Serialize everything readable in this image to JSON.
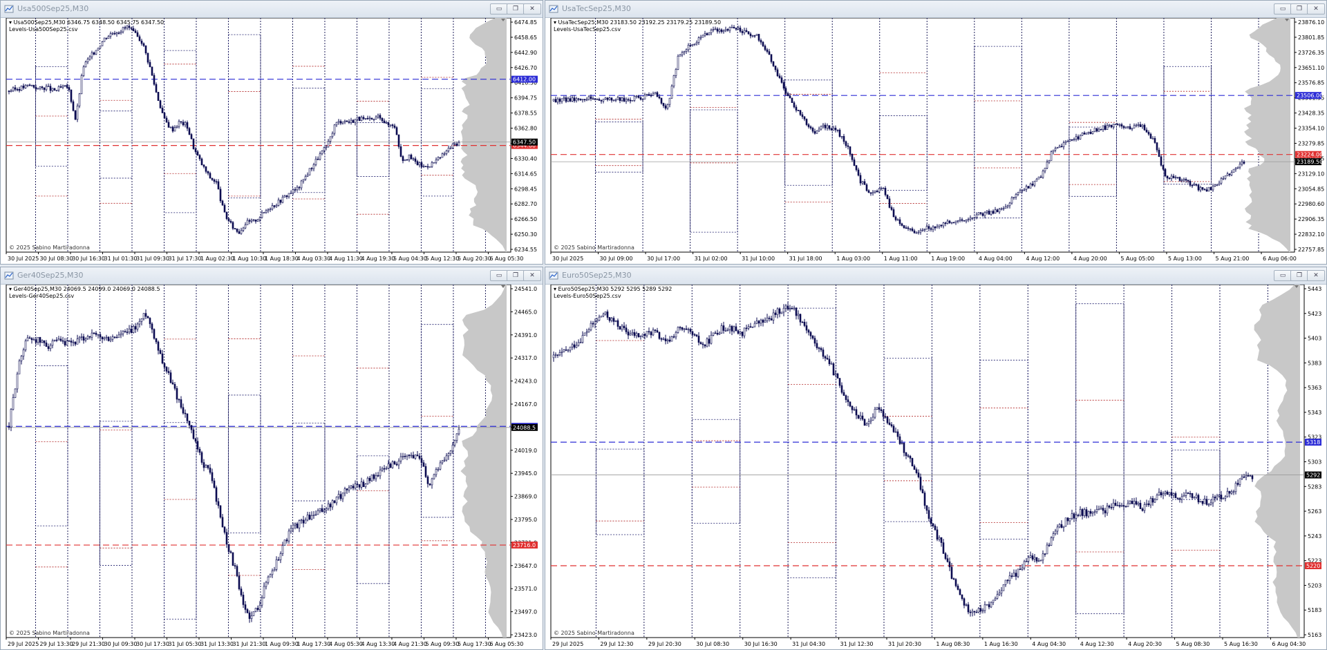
{
  "windows": [
    {
      "title": "Usa500Sep25,M30",
      "info_line": "Usa500Sep25,M30  6346.75 6348.50 6345.75 6347.50",
      "levels_file": "Levels-Usa500Sep25.csv",
      "copyright": "© 2025 Sabino Martiradonna",
      "price_labels": [
        "6474.85",
        "6458.65",
        "6442.90",
        "6426.70",
        "6410.50",
        "6394.75",
        "6378.55",
        "6362.80",
        "6346.60",
        "6330.40",
        "6314.65",
        "6298.45",
        "6282.70",
        "6266.50",
        "6250.30",
        "6234.55"
      ],
      "time_labels": [
        "30 Jul 2025",
        "30 Jul 08:30",
        "30 Jul 16:30",
        "31 Jul 01:30",
        "31 Jul 09:30",
        "31 Jul 17:30",
        "1 Aug 02:30",
        "1 Aug 10:30",
        "1 Aug 18:30",
        "4 Aug 03:30",
        "4 Aug 11:30",
        "4 Aug 19:30",
        "5 Aug 04:30",
        "5 Aug 12:30",
        "5 Aug 20:30",
        "6 Aug 05:30"
      ],
      "markers": {
        "blue": "6412.00",
        "red": "6344.00",
        "last": "6347.50"
      }
    },
    {
      "title": "UsaTecSep25,M30",
      "info_line": "UsaTecSep25,M30  23183.50 23192.25 23179.25 23189.50",
      "levels_file": "Levels-UsaTecSep25.csv",
      "copyright": "© 2025 Sabino Martiradonna",
      "price_labels": [
        "23876.10",
        "23801.85",
        "23726.35",
        "23651.10",
        "23576.85",
        "23501.35",
        "23428.35",
        "23354.10",
        "23279.85",
        "23204.35",
        "23129.10",
        "23054.85",
        "22980.60",
        "22906.35",
        "22832.10",
        "22757.85"
      ],
      "time_labels": [
        "30 Jul 2025",
        "30 Jul 09:00",
        "30 Jul 17:00",
        "31 Jul 02:00",
        "31 Jul 10:00",
        "31 Jul 18:00",
        "1 Aug 03:00",
        "1 Aug 11:00",
        "1 Aug 19:00",
        "4 Aug 04:00",
        "4 Aug 12:00",
        "4 Aug 20:00",
        "5 Aug 05:00",
        "5 Aug 13:00",
        "5 Aug 21:00",
        "6 Aug 06:00"
      ],
      "markers": {
        "blue": "23506.00",
        "red": "23224.00",
        "last": "23189.50"
      }
    },
    {
      "title": "Ger40Sep25,M30",
      "info_line": "Ger40Sep25,M30  24069.5 24099.0 24069.0 24088.5",
      "levels_file": "Levels-Ger40Sep25.csv",
      "copyright": "© 2025 Sabino Martiradonna",
      "price_labels": [
        "24541.0",
        "24465.0",
        "24391.0",
        "24317.0",
        "24243.0",
        "24167.0",
        "24093.0",
        "24019.0",
        "23945.0",
        "23869.0",
        "23795.0",
        "23721.0",
        "23647.0",
        "23571.0",
        "23497.0",
        "23423.0"
      ],
      "time_labels": [
        "29 Jul 2025",
        "29 Jul 13:30",
        "29 Jul 21:30",
        "30 Jul 09:30",
        "30 Jul 17:30",
        "31 Jul 05:30",
        "31 Jul 13:30",
        "31 Jul 21:30",
        "1 Aug 09:30",
        "1 Aug 17:30",
        "4 Aug 05:30",
        "4 Aug 13:30",
        "4 Aug 21:30",
        "5 Aug 09:30",
        "5 Aug 17:30",
        "6 Aug 05:30"
      ],
      "markers": {
        "blue": "24092.0",
        "red": "23716.0",
        "last": "24088.5"
      }
    },
    {
      "title": "Euro50Sep25,M30",
      "info_line": "Euro50Sep25,M30  5292 5295 5289 5292",
      "levels_file": "Levels-Euro50Sep25.csv",
      "copyright": "© 2025 Sabino Martiradonna",
      "price_labels": [
        "5443",
        "5423",
        "5403",
        "5383",
        "5363",
        "5343",
        "5323",
        "5303",
        "5283",
        "5263",
        "5243",
        "5223",
        "5203",
        "5183",
        "5163"
      ],
      "time_labels": [
        "29 Jul 2025",
        "29 Jul 12:30",
        "29 Jul 20:30",
        "30 Jul 08:30",
        "30 Jul 16:30",
        "31 Jul 04:30",
        "31 Jul 12:30",
        "31 Jul 20:30",
        "1 Aug 08:30",
        "1 Aug 16:30",
        "4 Aug 04:30",
        "4 Aug 12:30",
        "4 Aug 20:30",
        "5 Aug 08:30",
        "5 Aug 16:30",
        "6 Aug 04:30"
      ],
      "markers": {
        "blue": "5318",
        "red": "5220",
        "last": "5292"
      }
    }
  ],
  "chart_data": [
    {
      "type": "candlestick",
      "symbol": "Usa500Sep25,M30",
      "ylim": [
        6234.55,
        6474.85
      ],
      "price_path": [
        6400,
        6402,
        6404,
        6406,
        6402,
        6404,
        6400,
        6403,
        6404,
        6370,
        6425,
        6435,
        6445,
        6455,
        6460,
        6462,
        6466,
        6458,
        6450,
        6425,
        6395,
        6370,
        6360,
        6368,
        6365,
        6340,
        6325,
        6312,
        6306,
        6275,
        6262,
        6255,
        6265,
        6266,
        6272,
        6280,
        6284,
        6290,
        6296,
        6300,
        6312,
        6324,
        6335,
        6344,
        6366,
        6370,
        6368,
        6372,
        6370,
        6370,
        6375,
        6365,
        6366,
        6330,
        6332,
        6326,
        6322,
        6325,
        6330,
        6338,
        6345,
        6347.5
      ],
      "levels": {
        "blue": 6412.0,
        "red": 6344.0,
        "last": 6347.5
      },
      "level_colors": {
        "blue": "#2b2bd6",
        "red": "#e03030"
      },
      "candle_color": "#0a0a50"
    },
    {
      "type": "candlestick",
      "symbol": "UsaTecSep25,M30",
      "ylim": [
        22757.85,
        23876.1
      ],
      "price_path": [
        23480,
        23485,
        23492,
        23494,
        23488,
        23490,
        23486,
        23492,
        23500,
        23510,
        23440,
        23690,
        23745,
        23785,
        23810,
        23822,
        23828,
        23805,
        23790,
        23700,
        23580,
        23470,
        23400,
        23330,
        23360,
        23340,
        23252,
        23100,
        23040,
        23070,
        22930,
        22880,
        22855,
        22872,
        22882,
        22900,
        22912,
        22930,
        22944,
        22956,
        22980,
        23040,
        23074,
        23114,
        23236,
        23270,
        23300,
        23326,
        23344,
        23358,
        23364,
        23352,
        23364,
        23284,
        23122,
        23110,
        23090,
        23060,
        23058,
        23106,
        23150,
        23189.5
      ],
      "levels": {
        "blue": 23506.0,
        "red": 23224.0,
        "last": 23189.5
      },
      "level_colors": {
        "blue": "#2b2bd6",
        "red": "#e03030"
      },
      "candle_color": "#0a0a50"
    },
    {
      "type": "candlestick",
      "symbol": "Ger40Sep25,M30",
      "ylim": [
        23423.0,
        24541.0
      ],
      "price_path": [
        24092,
        24260,
        24365,
        24372,
        24358,
        24348,
        24360,
        24350,
        24357,
        24366,
        24382,
        24375,
        24368,
        24372,
        24385,
        24390,
        24416,
        24452,
        24380,
        24300,
        24240,
        24176,
        24118,
        24042,
        23976,
        23944,
        23826,
        23724,
        23640,
        23520,
        23486,
        23530,
        23610,
        23652,
        23718,
        23768,
        23786,
        23802,
        23812,
        23830,
        23846,
        23870,
        23900,
        23906,
        23912,
        23932,
        23946,
        23968,
        23978,
        23992,
        24000,
        23998,
        23906,
        23960,
        23984,
        24040,
        24088.5
      ],
      "levels": {
        "blue": 24092.0,
        "red": 23716.0,
        "last": 24088.5
      },
      "level_colors": {
        "blue": "#2b2bd6",
        "red": "#e03030"
      },
      "candle_color": "#0a0a50"
    },
    {
      "type": "candlestick",
      "symbol": "Euro50Sep25,M30",
      "ylim": [
        5163,
        5443
      ],
      "price_path": [
        5385,
        5390,
        5398,
        5410,
        5420,
        5412,
        5404,
        5402,
        5406,
        5396,
        5408,
        5404,
        5394,
        5406,
        5410,
        5404,
        5412,
        5414,
        5422,
        5426,
        5412,
        5394,
        5382,
        5360,
        5342,
        5332,
        5346,
        5330,
        5312,
        5294,
        5256,
        5236,
        5206,
        5186,
        5184,
        5190,
        5206,
        5214,
        5226,
        5226,
        5246,
        5256,
        5262,
        5262,
        5264,
        5268,
        5270,
        5266,
        5274,
        5278,
        5274,
        5276,
        5270,
        5274,
        5278,
        5288,
        5292
      ],
      "levels": {
        "blue": 5318,
        "red": 5220,
        "last": 5292
      },
      "level_colors": {
        "blue": "#2b2bd6",
        "red": "#e03030"
      },
      "candle_color": "#0a0a50"
    }
  ]
}
